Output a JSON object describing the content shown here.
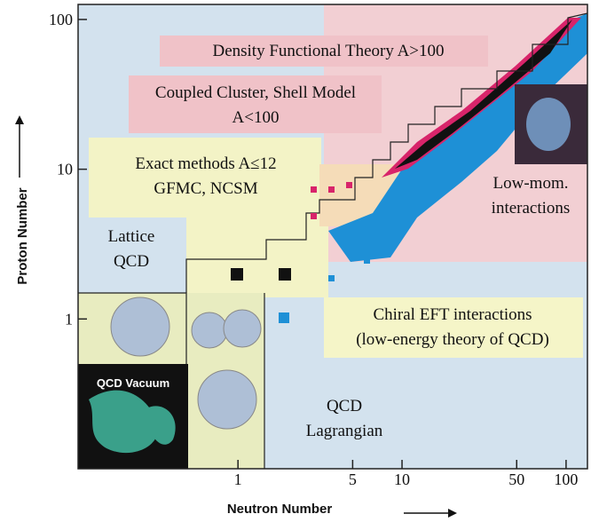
{
  "chart_data": {
    "type": "region-map",
    "x_label": "Neutron Number",
    "y_label": "Proton Number",
    "log_x": true,
    "log_y": true,
    "xlim": [
      0.106,
      135
    ],
    "ylim": [
      0.1,
      126
    ],
    "xticks": [
      1,
      5,
      10,
      50,
      100
    ],
    "yticks": [
      1,
      10,
      100
    ],
    "regions": [
      {
        "lines": [
          "Density Functional Theory A>100"
        ]
      },
      {
        "lines": [
          "Coupled Cluster, Shell Model",
          "A<100"
        ]
      },
      {
        "lines": [
          "Exact methods A≤12",
          "GFMC, NCSM"
        ]
      },
      {
        "lines": [
          "Lattice",
          "QCD"
        ]
      },
      {
        "lines": [
          "Low-mom.",
          "interactions"
        ]
      },
      {
        "lines": [
          "Chiral EFT interactions",
          "(low-energy theory of QCD)"
        ]
      },
      {
        "lines": [
          "QCD",
          "Lagrangian"
        ]
      },
      {
        "lines": [
          "QCD Vacuum"
        ]
      }
    ]
  }
}
